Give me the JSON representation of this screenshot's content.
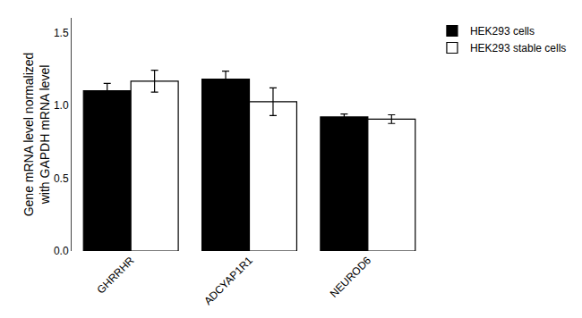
{
  "chart_data": {
    "type": "bar",
    "categories": [
      "GHRRHR",
      "ADCYAP1R1",
      "NEUROD6"
    ],
    "series": [
      {
        "name": "HEK293 cells",
        "color": "#000000",
        "values": [
          1.1,
          1.18,
          0.92
        ],
        "errors": [
          0.05,
          0.055,
          0.02
        ]
      },
      {
        "name": "HEK293 stable cells",
        "color": "#ffffff",
        "values": [
          1.165,
          1.025,
          0.905
        ],
        "errors": [
          0.075,
          0.095,
          0.03
        ]
      }
    ],
    "ylabel": "Gene mRNA level normalized\nwith GAPDH mRNA level",
    "ylim": [
      0,
      1.6
    ],
    "yticks": [
      {
        "value": 0.0,
        "label": "0.0"
      },
      0.5,
      {
        "value": 1.0,
        "label": "1.0"
      },
      1.5
    ],
    "grid": false,
    "legend": "upper right"
  }
}
